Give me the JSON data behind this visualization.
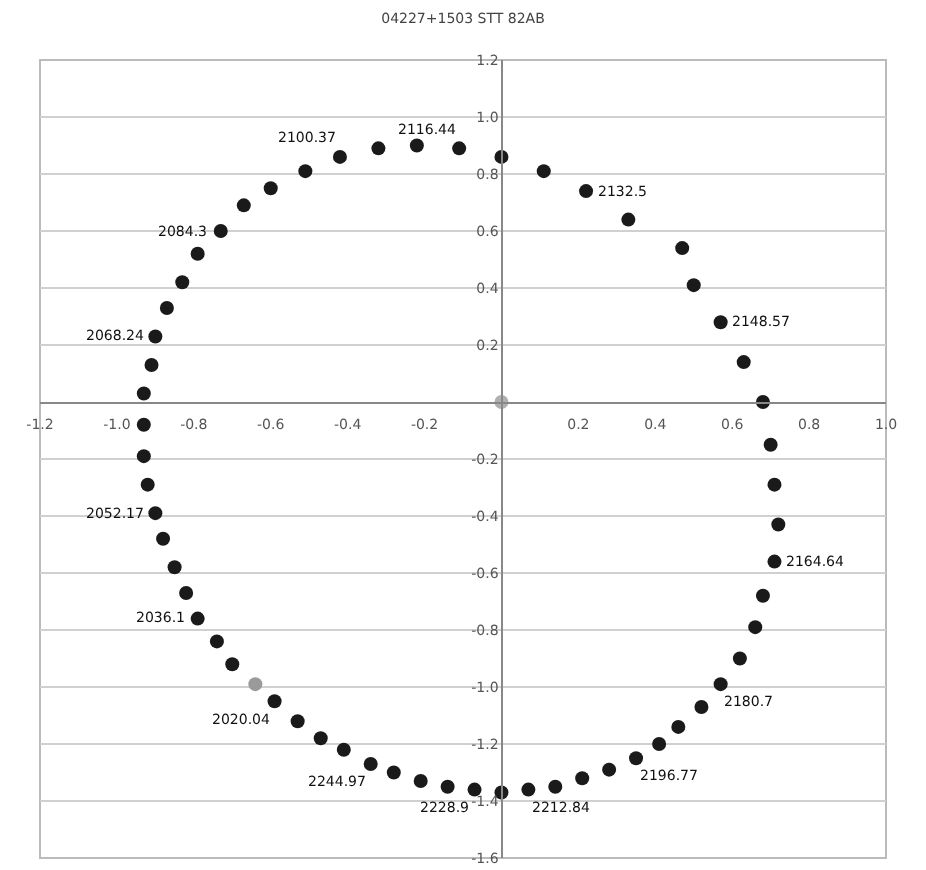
{
  "chart_data": {
    "type": "scatter",
    "title": "04227+1503 STT 82AB",
    "xlim": [
      -1.2,
      1.0
    ],
    "xticks": [
      -1.2,
      {
        "value": -1,
        "label": "-1.0"
      },
      -0.8,
      -0.6,
      -0.4,
      -0.2,
      0.2,
      0.4,
      0.6,
      0.8,
      {
        "value": 1,
        "label": "1.0"
      }
    ],
    "ylim": [
      -1.6,
      1.2
    ],
    "yticks": [
      -1.6,
      -1.4,
      -1.2,
      {
        "value": -1,
        "label": "-1.0"
      },
      -0.8,
      -0.6,
      -0.4,
      -0.2,
      0.2,
      0.4,
      0.6,
      0.8,
      {
        "value": 1,
        "label": "1.0"
      },
      1.2
    ],
    "grid": "y",
    "marker": "circle",
    "series": [
      {
        "color": "#1a1a1a",
        "x": [
          -0.93,
          -0.93,
          -0.91,
          -0.9,
          -0.87,
          -0.83,
          -0.79,
          -0.73,
          -0.67,
          -0.6,
          -0.51,
          -0.42,
          -0.32,
          -0.22,
          -0.11,
          0.0,
          0.11,
          0.22,
          0.33,
          0.47,
          0.5,
          0.57,
          0.63,
          0.68,
          0.7,
          0.71,
          0.72,
          0.71,
          0.68,
          0.66,
          0.62,
          0.57,
          0.52,
          0.46,
          0.41,
          0.35,
          0.28,
          0.21,
          0.14,
          0.07,
          0.0,
          -0.07,
          -0.14,
          -0.21,
          -0.28,
          -0.34,
          -0.41,
          -0.47,
          -0.53,
          -0.59,
          -0.7,
          -0.74,
          -0.79,
          -0.82,
          -0.85,
          -0.88,
          -0.9,
          -0.92,
          -0.93
        ],
        "values": [
          -0.08,
          0.03,
          0.13,
          0.23,
          0.33,
          0.42,
          0.52,
          0.6,
          0.69,
          0.75,
          0.81,
          0.86,
          0.89,
          0.9,
          0.89,
          0.86,
          0.81,
          0.74,
          0.64,
          0.54,
          0.41,
          0.28,
          0.14,
          0.0,
          -0.15,
          -0.29,
          -0.43,
          -0.56,
          -0.68,
          -0.79,
          -0.9,
          -0.99,
          -1.07,
          -1.14,
          -1.2,
          -1.25,
          -1.29,
          -1.32,
          -1.35,
          -1.36,
          -1.37,
          -1.36,
          -1.35,
          -1.33,
          -1.3,
          -1.27,
          -1.22,
          -1.18,
          -1.12,
          -1.05,
          -0.92,
          -0.84,
          -0.76,
          -0.67,
          -0.58,
          -0.48,
          -0.39,
          -0.29,
          -0.19
        ]
      },
      {
        "color": "#9a9a9a",
        "x": [
          -0.64
        ],
        "values": [
          -0.99
        ]
      },
      {
        "color": "#b0b0b0",
        "x": [
          0.0
        ],
        "values": [
          0.0
        ]
      }
    ],
    "annotations": [
      {
        "text": "2116.44",
        "x": -0.11,
        "y": 0.89
      },
      {
        "text": "2100.37",
        "x": -0.42,
        "y": 0.86
      },
      {
        "text": "2084.3",
        "x": -0.73,
        "y": 0.6
      },
      {
        "text": "2068.24",
        "x": -0.9,
        "y": 0.23
      },
      {
        "text": "2052.17",
        "x": -0.9,
        "y": -0.39
      },
      {
        "text": "2036.1",
        "x": -0.79,
        "y": -0.76
      },
      {
        "text": "2020.04",
        "x": -0.59,
        "y": -1.05
      },
      {
        "text": "2244.97",
        "x": -0.34,
        "y": -1.27
      },
      {
        "text": "2228.9",
        "x": -0.07,
        "y": -1.36
      },
      {
        "text": "2212.84",
        "x": 0.07,
        "y": -1.36
      },
      {
        "text": "2196.77",
        "x": 0.35,
        "y": -1.25
      },
      {
        "text": "2180.7",
        "x": 0.57,
        "y": -0.99
      },
      {
        "text": "2164.64",
        "x": 0.71,
        "y": -0.56
      },
      {
        "text": "2148.57",
        "x": 0.57,
        "y": 0.28
      },
      {
        "text": "2132.5",
        "x": 0.22,
        "y": 0.74
      }
    ]
  }
}
